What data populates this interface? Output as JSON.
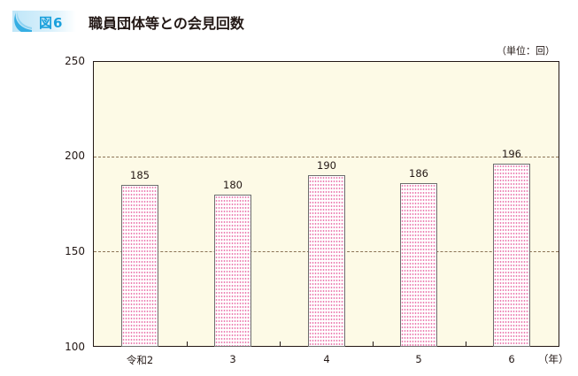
{
  "figure": {
    "number_label": "図6",
    "title": "職員団体等との会見回数",
    "unit_label": "（単位：回）",
    "x_unit_label": "（年）",
    "colors": {
      "banner_accent": "#1aa0dc",
      "banner_bg": "#bfe6f8",
      "plot_bg": "#fdfae6",
      "bar_dots": "#e96aa5",
      "bar_border": "#6d6d6d",
      "gridline": "#8b7355"
    }
  },
  "chart_data": {
    "type": "bar",
    "title": "職員団体等との会見回数",
    "xlabel": "（年）",
    "ylabel": "（単位：回）",
    "categories": [
      "令和2",
      "3",
      "4",
      "5",
      "6"
    ],
    "values": [
      185,
      180,
      190,
      186,
      196
    ],
    "value_labels": [
      "185",
      "180",
      "190",
      "186",
      "196"
    ],
    "ylim": [
      100,
      250
    ],
    "yticks": [
      100,
      150,
      200,
      250
    ],
    "ytick_labels": [
      "100",
      "150",
      "200",
      "250"
    ],
    "gridlines": [
      150,
      200
    ],
    "grid": "dashed horizontal at 150 and 200",
    "legend": null
  }
}
